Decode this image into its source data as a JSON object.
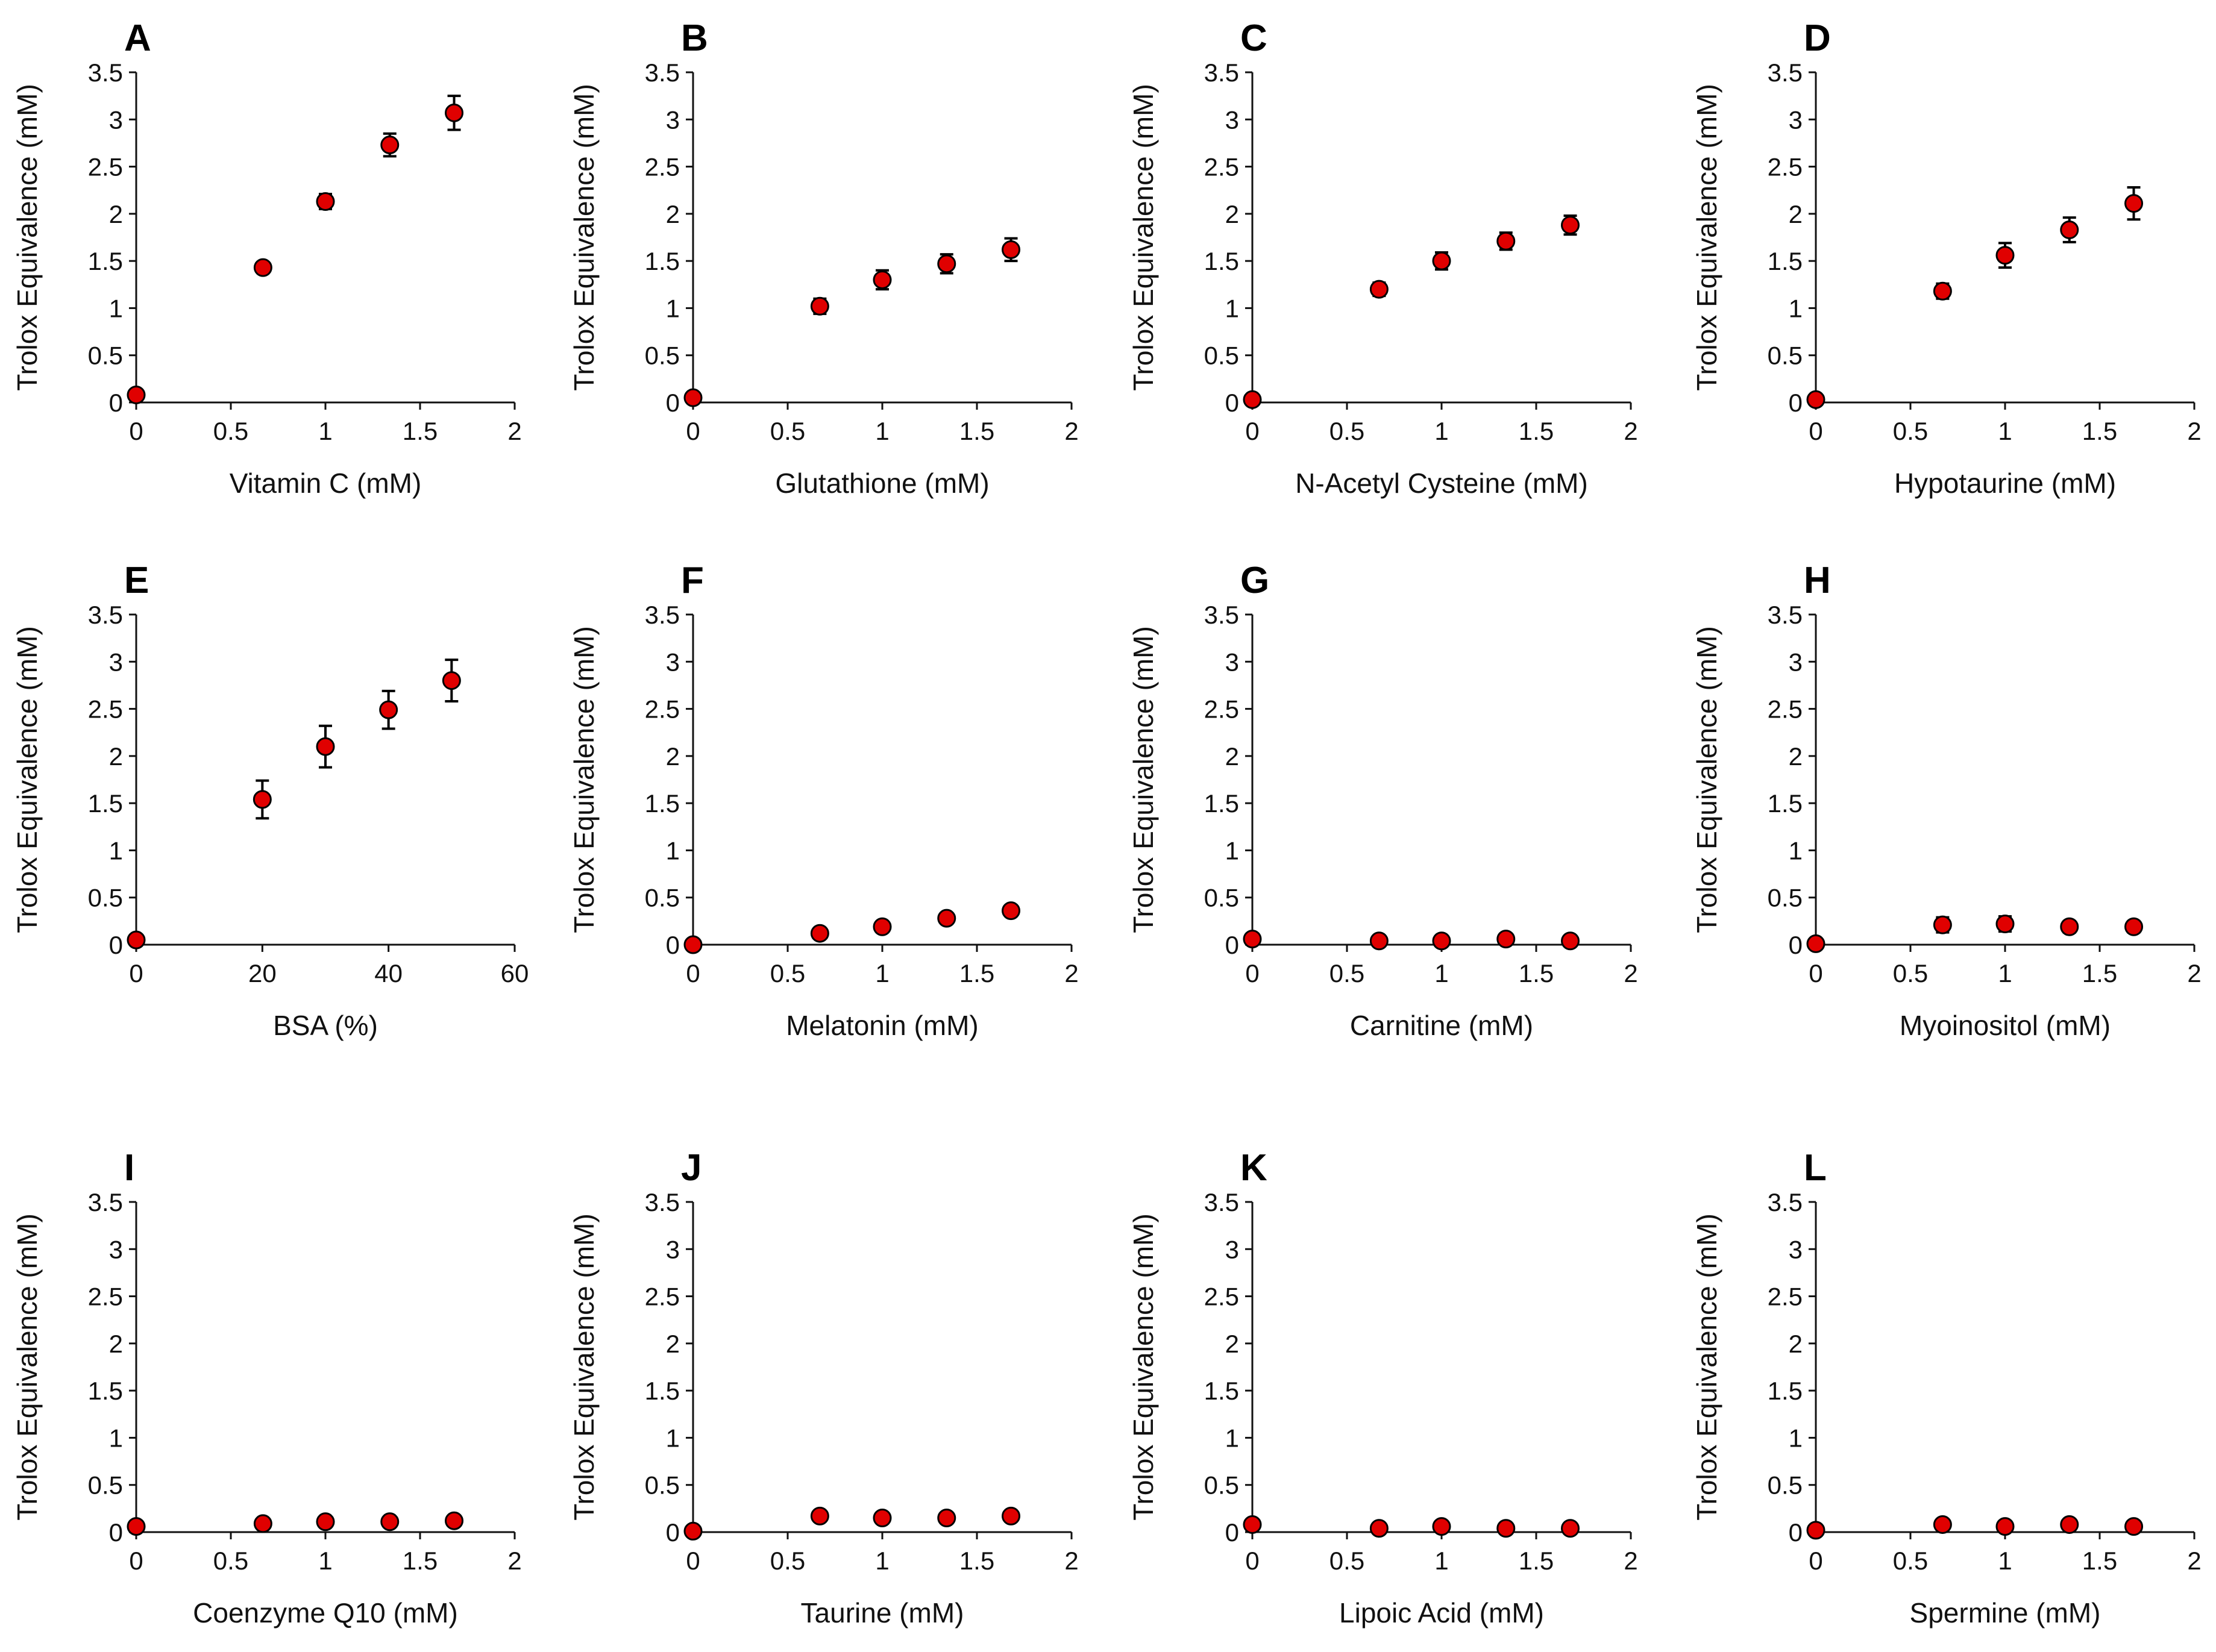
{
  "style": {
    "marker_color": "#e00000",
    "marker_edge": "#000000",
    "axis_color": "#111111"
  },
  "chart_data": [
    {
      "type": "scatter",
      "panel": "A",
      "xlabel": "Vitamin C (mM)",
      "ylabel": "Trolox Equivalence (mM)",
      "xlim": [
        0,
        2
      ],
      "ylim": [
        0,
        3.5
      ],
      "xticks": [
        "0",
        "0.5",
        "1",
        "1.5",
        "2"
      ],
      "yticks": [
        "0",
        "0.5",
        "1",
        "1.5",
        "2",
        "2.5",
        "3",
        "3.5"
      ],
      "x": [
        0,
        0.67,
        1.0,
        1.34,
        1.68
      ],
      "y": [
        0.08,
        1.43,
        2.13,
        2.73,
        3.07
      ],
      "err": [
        0,
        0.05,
        0.08,
        0.12,
        0.18
      ]
    },
    {
      "type": "scatter",
      "panel": "B",
      "xlabel": "Glutathione (mM)",
      "ylabel": "Trolox Equivalence (mM)",
      "xlim": [
        0,
        2
      ],
      "ylim": [
        0,
        3.5
      ],
      "xticks": [
        "0",
        "0.5",
        "1",
        "1.5",
        "2"
      ],
      "yticks": [
        "0",
        "0.5",
        "1",
        "1.5",
        "2",
        "2.5",
        "3",
        "3.5"
      ],
      "x": [
        0,
        0.67,
        1.0,
        1.34,
        1.68
      ],
      "y": [
        0.05,
        1.02,
        1.3,
        1.47,
        1.62
      ],
      "err": [
        0,
        0.08,
        0.1,
        0.1,
        0.12
      ]
    },
    {
      "type": "scatter",
      "panel": "C",
      "xlabel": "N-Acetyl Cysteine  (mM)",
      "ylabel": "Trolox Equivalence (mM)",
      "xlim": [
        0,
        2
      ],
      "ylim": [
        0,
        3.5
      ],
      "xticks": [
        "0",
        "0.5",
        "1",
        "1.5",
        "2"
      ],
      "yticks": [
        "0",
        "0.5",
        "1",
        "1.5",
        "2",
        "2.5",
        "3",
        "3.5"
      ],
      "x": [
        0,
        0.67,
        1.0,
        1.34,
        1.68
      ],
      "y": [
        0.03,
        1.2,
        1.5,
        1.71,
        1.88
      ],
      "err": [
        0,
        0.07,
        0.09,
        0.09,
        0.1
      ]
    },
    {
      "type": "scatter",
      "panel": "D",
      "xlabel": "Hypotaurine  (mM)",
      "ylabel": "Trolox Equivalence (mM)",
      "xlim": [
        0,
        2
      ],
      "ylim": [
        0,
        3.5
      ],
      "xticks": [
        "0",
        "0.5",
        "1",
        "1.5",
        "2"
      ],
      "yticks": [
        "0",
        "0.5",
        "1",
        "1.5",
        "2",
        "2.5",
        "3",
        "3.5"
      ],
      "x": [
        0,
        0.67,
        1.0,
        1.34,
        1.68
      ],
      "y": [
        0.03,
        1.18,
        1.56,
        1.83,
        2.11
      ],
      "err": [
        0,
        0.08,
        0.13,
        0.13,
        0.17
      ]
    },
    {
      "type": "scatter",
      "panel": "E",
      "xlabel": "BSA (%)",
      "ylabel": "Trolox Equivalence (mM)",
      "xlim": [
        0,
        60
      ],
      "ylim": [
        0,
        3.5
      ],
      "xticks": [
        "0",
        "20",
        "40",
        "60"
      ],
      "yticks": [
        "0",
        "0.5",
        "1",
        "1.5",
        "2",
        "2.5",
        "3",
        "3.5"
      ],
      "x": [
        0,
        20,
        30,
        40,
        50
      ],
      "y": [
        0.05,
        1.54,
        2.1,
        2.49,
        2.8
      ],
      "err": [
        0,
        0.2,
        0.22,
        0.2,
        0.22
      ]
    },
    {
      "type": "scatter",
      "panel": "F",
      "xlabel": "Melatonin (mM)",
      "ylabel": "Trolox Equivalence (mM)",
      "xlim": [
        0,
        2
      ],
      "ylim": [
        0,
        3.5
      ],
      "xticks": [
        "0",
        "0.5",
        "1",
        "1.5",
        "2"
      ],
      "yticks": [
        "0",
        "0.5",
        "1",
        "1.5",
        "2",
        "2.5",
        "3",
        "3.5"
      ],
      "x": [
        0,
        0.67,
        1.0,
        1.34,
        1.68
      ],
      "y": [
        0.0,
        0.12,
        0.19,
        0.28,
        0.36
      ],
      "err": [
        0,
        0.03,
        0.03,
        0.03,
        0.04
      ]
    },
    {
      "type": "scatter",
      "panel": "G",
      "xlabel": "Carnitine  (mM)",
      "ylabel": "Trolox Equivalence (mM)",
      "xlim": [
        0,
        2
      ],
      "ylim": [
        0,
        3.5
      ],
      "xticks": [
        "0",
        "0.5",
        "1",
        "1.5",
        "2"
      ],
      "yticks": [
        "0",
        "0.5",
        "1",
        "1.5",
        "2",
        "2.5",
        "3",
        "3.5"
      ],
      "x": [
        0,
        0.67,
        1.0,
        1.34,
        1.68
      ],
      "y": [
        0.06,
        0.04,
        0.04,
        0.06,
        0.04
      ],
      "err": [
        0,
        0.02,
        0.02,
        0.02,
        0.02
      ]
    },
    {
      "type": "scatter",
      "panel": "H",
      "xlabel": "Myoinositol (mM)",
      "ylabel": "Trolox Equivalence (mM)",
      "xlim": [
        0,
        2
      ],
      "ylim": [
        0,
        3.5
      ],
      "xticks": [
        "0",
        "0.5",
        "1",
        "1.5",
        "2"
      ],
      "yticks": [
        "0",
        "0.5",
        "1",
        "1.5",
        "2",
        "2.5",
        "3",
        "3.5"
      ],
      "x": [
        0,
        0.67,
        1.0,
        1.34,
        1.68
      ],
      "y": [
        0.01,
        0.21,
        0.22,
        0.19,
        0.19
      ],
      "err": [
        0,
        0.08,
        0.08,
        0.06,
        0.06
      ]
    },
    {
      "type": "scatter",
      "panel": "I",
      "xlabel": "Coenzyme Q10 (mM)",
      "ylabel": "Trolox Equivalence (mM)",
      "xlim": [
        0,
        2
      ],
      "ylim": [
        0,
        3.5
      ],
      "xticks": [
        "0",
        "0.5",
        "1",
        "1.5",
        "2"
      ],
      "yticks": [
        "0",
        "0.5",
        "1",
        "1.5",
        "2",
        "2.5",
        "3",
        "3.5"
      ],
      "x": [
        0,
        0.67,
        1.0,
        1.34,
        1.68
      ],
      "y": [
        0.06,
        0.09,
        0.11,
        0.11,
        0.12
      ],
      "err": [
        0,
        0.02,
        0.02,
        0.02,
        0.02
      ]
    },
    {
      "type": "scatter",
      "panel": "J",
      "xlabel": "Taurine (mM)",
      "ylabel": "Trolox Equivalence (mM)",
      "xlim": [
        0,
        2
      ],
      "ylim": [
        0,
        3.5
      ],
      "xticks": [
        "0",
        "0.5",
        "1",
        "1.5",
        "2"
      ],
      "yticks": [
        "0",
        "0.5",
        "1",
        "1.5",
        "2",
        "2.5",
        "3",
        "3.5"
      ],
      "x": [
        0,
        0.67,
        1.0,
        1.34,
        1.68
      ],
      "y": [
        0.01,
        0.17,
        0.15,
        0.15,
        0.17
      ],
      "err": [
        0,
        0.02,
        0.02,
        0.02,
        0.02
      ]
    },
    {
      "type": "scatter",
      "panel": "K",
      "xlabel": "Lipoic Acid (mM)",
      "ylabel": "Trolox Equivalence (mM)",
      "xlim": [
        0,
        2
      ],
      "ylim": [
        0,
        3.5
      ],
      "xticks": [
        "0",
        "0.5",
        "1",
        "1.5",
        "2"
      ],
      "yticks": [
        "0",
        "0.5",
        "1",
        "1.5",
        "2",
        "2.5",
        "3",
        "3.5"
      ],
      "x": [
        0,
        0.67,
        1.0,
        1.34,
        1.68
      ],
      "y": [
        0.08,
        0.04,
        0.06,
        0.04,
        0.04
      ],
      "err": [
        0,
        0.02,
        0.02,
        0.02,
        0.02
      ]
    },
    {
      "type": "scatter",
      "panel": "L",
      "xlabel": "Spermine (mM)",
      "ylabel": "Trolox Equivalence (mM)",
      "xlim": [
        0,
        2
      ],
      "ylim": [
        0,
        3.5
      ],
      "xticks": [
        "0",
        "0.5",
        "1",
        "1.5",
        "2"
      ],
      "yticks": [
        "0",
        "0.5",
        "1",
        "1.5",
        "2",
        "2.5",
        "3",
        "3.5"
      ],
      "x": [
        0,
        0.67,
        1.0,
        1.34,
        1.68
      ],
      "y": [
        0.02,
        0.08,
        0.06,
        0.08,
        0.06
      ],
      "err": [
        0,
        0.02,
        0.02,
        0.02,
        0.02
      ]
    }
  ]
}
